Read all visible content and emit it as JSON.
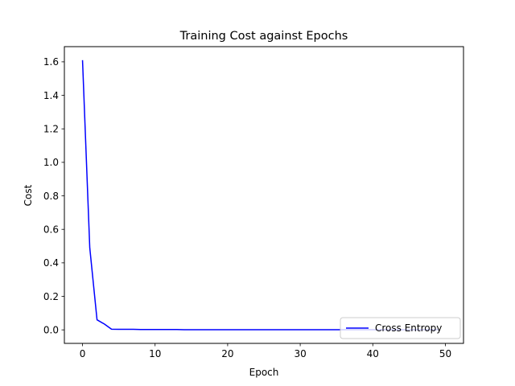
{
  "chart_data": {
    "type": "line",
    "title": "Training Cost against Epochs",
    "xlabel": "Epoch",
    "ylabel": "Cost",
    "xlim": [
      -2.5,
      52.5
    ],
    "ylim": [
      -0.0807,
      1.6907
    ],
    "xticks": [
      0,
      10,
      20,
      30,
      40,
      50
    ],
    "yticks": [
      0.0,
      0.2,
      0.4,
      0.6,
      0.8,
      1.0,
      1.2,
      1.4,
      1.6
    ],
    "ytick_labels": [
      "0.0",
      "0.2",
      "0.4",
      "0.6",
      "0.8",
      "1.0",
      "1.2",
      "1.4",
      "1.6"
    ],
    "grid": false,
    "legend_position": "lower-right",
    "series": [
      {
        "name": "Cross Entropy",
        "color": "#0000ff",
        "x": [
          0,
          1,
          2,
          3,
          4,
          5,
          6,
          7,
          8,
          9,
          10,
          11,
          12,
          13,
          14,
          15,
          16,
          17,
          18,
          19,
          20,
          21,
          22,
          23,
          24,
          25,
          26,
          27,
          28,
          29,
          30,
          31,
          32,
          33,
          34,
          35,
          36,
          37,
          38,
          39,
          40,
          41,
          42,
          43,
          44,
          45,
          46,
          47,
          48,
          49
        ],
        "y": [
          1.61,
          0.49,
          0.06,
          0.035,
          0.004,
          0.003,
          0.003,
          0.003,
          0.002,
          0.002,
          0.002,
          0.002,
          0.002,
          0.002,
          0.001,
          0.001,
          0.001,
          0.001,
          0.001,
          0.001,
          0.001,
          0.001,
          0.001,
          0.001,
          0.001,
          0.001,
          0.001,
          0.001,
          0.001,
          0.001,
          0.001,
          0.001,
          0.001,
          0.001,
          0.001,
          0.001,
          0.001,
          0.001,
          0.001,
          0.001,
          0.001,
          0.001,
          0.001,
          0.001,
          0.001,
          0.001,
          0.001,
          0.001,
          0.001,
          0.001
        ]
      }
    ]
  }
}
